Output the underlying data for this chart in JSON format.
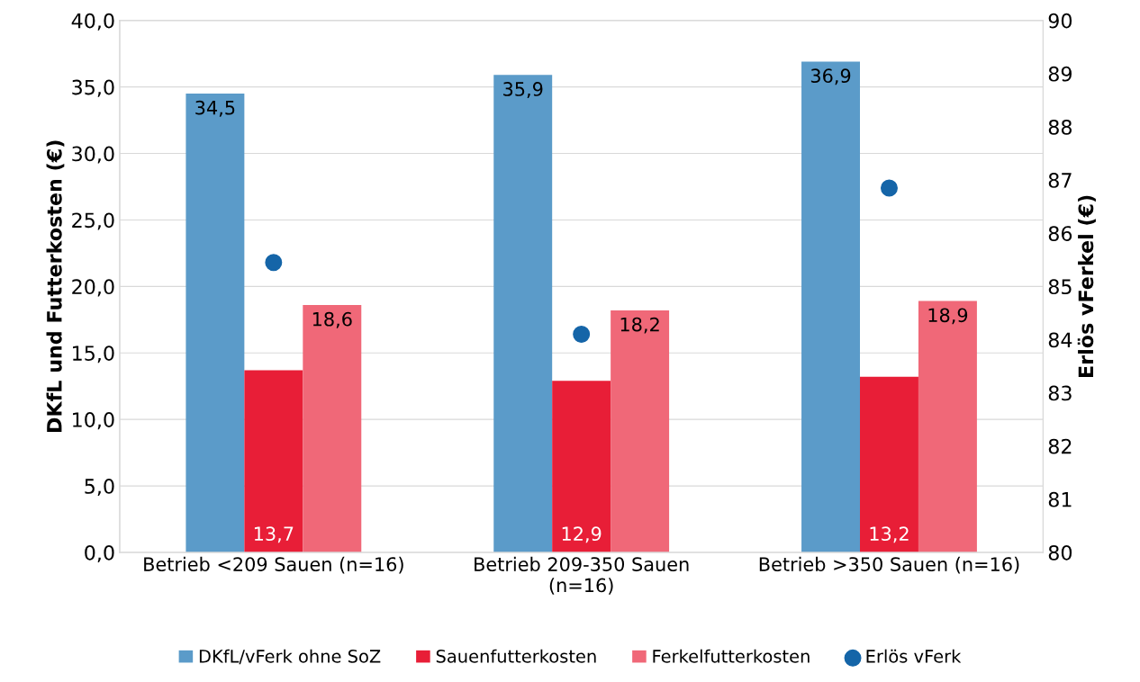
{
  "chart_data": {
    "type": "bar",
    "categories": [
      "Betrieb <209 Sauen (n=16)",
      "Betrieb 209-350 Sauen\n(n=16)",
      "Betrieb >350 Sauen (n=16)"
    ],
    "ylabel": "DKfL und Futterkosten (€)",
    "y2label": "Erlös vFerkel (€)",
    "series": [
      {
        "name": "DKfL/vFerk ohne SoZ",
        "color": "#5b9bc9",
        "values": [
          34.5,
          35.9,
          36.9
        ],
        "value_labels": [
          "34,5",
          "35,9",
          "36,9"
        ]
      },
      {
        "name": "Sauenfutterkosten",
        "color": "#e81e37",
        "values": [
          13.7,
          12.9,
          13.2
        ],
        "value_labels": [
          "13,7",
          "12,9",
          "13,2"
        ]
      },
      {
        "name": "Ferkelfutterkosten",
        "color": "#f06878",
        "values": [
          18.6,
          18.2,
          18.9
        ],
        "value_labels": [
          "18,6",
          "18,2",
          "18,9"
        ]
      },
      {
        "name": "Erlös vFerk",
        "type": "scatter",
        "axis": "y2",
        "color": "#1565a8",
        "marker": "circle",
        "values": [
          85.45,
          84.1,
          86.85
        ]
      }
    ],
    "ylim": [
      0,
      40
    ],
    "yticks": [
      {
        "value": 0,
        "label": "0,0"
      },
      {
        "value": 5,
        "label": "5,0"
      },
      {
        "value": 10,
        "label": "10,0"
      },
      {
        "value": 15,
        "label": "15,0"
      },
      {
        "value": 20,
        "label": "20,0"
      },
      {
        "value": 25,
        "label": "25,0"
      },
      {
        "value": 30,
        "label": "30,0"
      },
      {
        "value": 35,
        "label": "35,0"
      },
      {
        "value": 40,
        "label": "40,0"
      }
    ],
    "y2lim": [
      80,
      90
    ],
    "y2ticks": [
      80,
      81,
      82,
      83,
      84,
      85,
      86,
      87,
      88,
      89,
      90
    ],
    "grid": "y",
    "legend": "bottom"
  }
}
